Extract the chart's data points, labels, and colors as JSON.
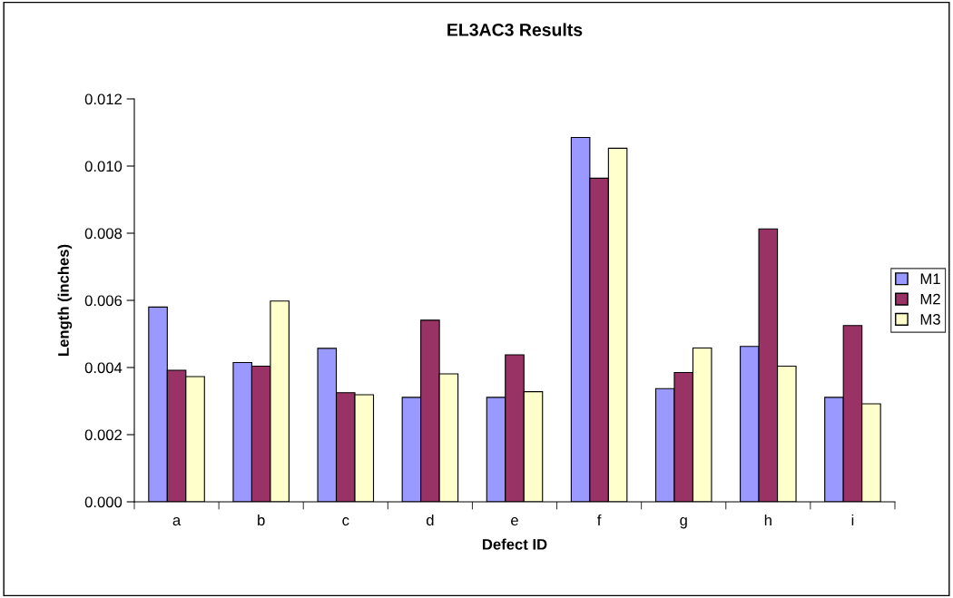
{
  "chart_data": {
    "type": "bar",
    "title": "EL3AC3 Results",
    "xlabel": "Defect ID",
    "ylabel": "Length (inches)",
    "categories": [
      "a",
      "b",
      "c",
      "d",
      "e",
      "f",
      "g",
      "h",
      "i"
    ],
    "series": [
      {
        "name": "M1",
        "color": "#9999ff",
        "values": [
          0.0058,
          0.00415,
          0.00457,
          0.00311,
          0.00311,
          0.01085,
          0.00337,
          0.00463,
          0.00311
        ]
      },
      {
        "name": "M2",
        "color": "#993366",
        "values": [
          0.00392,
          0.00404,
          0.00325,
          0.00541,
          0.00438,
          0.00964,
          0.00385,
          0.00813,
          0.00525
        ]
      },
      {
        "name": "M3",
        "color": "#ffffcc",
        "values": [
          0.00373,
          0.00598,
          0.00319,
          0.00381,
          0.00328,
          0.01053,
          0.00458,
          0.00404,
          0.00292
        ]
      }
    ],
    "ylim": [
      0,
      0.012
    ],
    "yticks": [
      {
        "value": 0,
        "label": "0.000"
      },
      {
        "value": 0.002,
        "label": "0.002"
      },
      {
        "value": 0.004,
        "label": "0.004"
      },
      {
        "value": 0.006,
        "label": "0.006"
      },
      {
        "value": 0.008,
        "label": "0.008"
      },
      {
        "value": 0.01,
        "label": "0.010"
      },
      {
        "value": 0.012,
        "label": "0.012"
      }
    ],
    "grid": false,
    "legend": "right"
  }
}
